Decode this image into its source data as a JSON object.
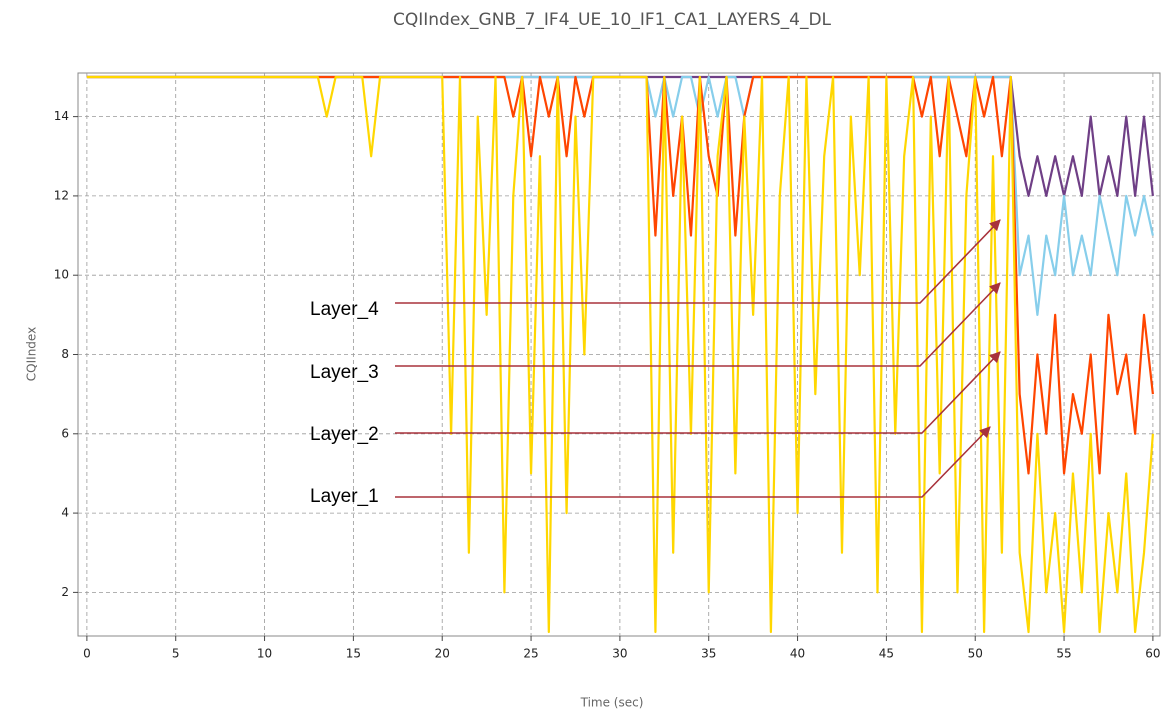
{
  "chart_data": {
    "type": "line",
    "title": "CQIIndex_GNB_7_IF4_UE_10_IF1_CA1_LAYERS_4_DL",
    "xlabel": "Time (sec)",
    "ylabel": "CQIIndex",
    "xlim": [
      -0.5,
      60.4
    ],
    "ylim": [
      0.9,
      15.1
    ],
    "xticks": [
      0,
      5,
      10,
      15,
      20,
      25,
      30,
      35,
      40,
      45,
      50,
      55,
      60
    ],
    "yticks": [
      2,
      4,
      6,
      8,
      10,
      12,
      14
    ],
    "grid": true,
    "x": [
      0,
      0.5,
      1,
      1.5,
      2,
      2.5,
      3,
      3.5,
      4,
      4.5,
      5,
      5.5,
      6,
      6.5,
      7,
      7.5,
      8,
      8.5,
      9,
      9.5,
      10,
      10.5,
      11,
      11.5,
      12,
      12.5,
      13,
      13.5,
      14,
      14.5,
      15,
      15.5,
      16,
      16.5,
      17,
      17.5,
      18,
      18.5,
      19,
      19.5,
      20,
      20.5,
      21,
      21.5,
      22,
      22.5,
      23,
      23.5,
      24,
      24.5,
      25,
      25.5,
      26,
      26.5,
      27,
      27.5,
      28,
      28.5,
      29,
      29.5,
      30,
      30.5,
      31,
      31.5,
      32,
      32.5,
      33,
      33.5,
      34,
      34.5,
      35,
      35.5,
      36,
      36.5,
      37,
      37.5,
      38,
      38.5,
      39,
      39.5,
      40,
      40.5,
      41,
      41.5,
      42,
      42.5,
      43,
      43.5,
      44,
      44.5,
      45,
      45.5,
      46,
      46.5,
      47,
      47.5,
      48,
      48.5,
      49,
      49.5,
      50,
      50.5,
      51,
      51.5,
      52,
      52.5,
      53,
      53.5,
      54,
      54.5,
      55,
      55.5,
      56,
      56.5,
      57,
      57.5,
      58,
      58.5,
      59,
      59.5,
      60
    ],
    "series": [
      {
        "name": "Layer_4",
        "color": "#6f3f86",
        "values": [
          15,
          15,
          15,
          15,
          15,
          15,
          15,
          15,
          15,
          15,
          15,
          15,
          15,
          15,
          15,
          15,
          15,
          15,
          15,
          15,
          15,
          15,
          15,
          15,
          15,
          15,
          15,
          15,
          15,
          15,
          15,
          15,
          15,
          15,
          15,
          15,
          15,
          15,
          15,
          15,
          15,
          15,
          15,
          15,
          15,
          15,
          15,
          15,
          15,
          15,
          15,
          15,
          15,
          15,
          15,
          15,
          15,
          15,
          15,
          15,
          15,
          15,
          15,
          15,
          15,
          15,
          15,
          15,
          15,
          15,
          15,
          15,
          15,
          15,
          15,
          15,
          15,
          15,
          15,
          15,
          15,
          15,
          15,
          15,
          15,
          15,
          15,
          15,
          15,
          15,
          15,
          15,
          15,
          15,
          15,
          15,
          15,
          15,
          15,
          15,
          15,
          15,
          15,
          15,
          15,
          13,
          12,
          13,
          12,
          13,
          12,
          13,
          12,
          14,
          12,
          13,
          12,
          14,
          12,
          14,
          12
        ]
      },
      {
        "name": "Layer_3",
        "color": "#87ceeb",
        "values": [
          15,
          15,
          15,
          15,
          15,
          15,
          15,
          15,
          15,
          15,
          15,
          15,
          15,
          15,
          15,
          15,
          15,
          15,
          15,
          15,
          15,
          15,
          15,
          15,
          15,
          15,
          15,
          15,
          15,
          15,
          15,
          15,
          15,
          15,
          15,
          15,
          15,
          15,
          15,
          15,
          15,
          15,
          15,
          15,
          15,
          15,
          15,
          15,
          15,
          15,
          15,
          15,
          15,
          15,
          15,
          15,
          15,
          15,
          15,
          15,
          15,
          15,
          15,
          15,
          14,
          15,
          14,
          15,
          15,
          14,
          15,
          14,
          15,
          15,
          14,
          15,
          15,
          15,
          15,
          15,
          15,
          15,
          15,
          15,
          15,
          15,
          15,
          15,
          15,
          15,
          15,
          15,
          15,
          15,
          15,
          15,
          15,
          15,
          15,
          15,
          15,
          15,
          15,
          15,
          15,
          10,
          11,
          9,
          11,
          10,
          12,
          10,
          11,
          10,
          12,
          11,
          10,
          12,
          11,
          12,
          11
        ]
      },
      {
        "name": "Layer_2",
        "color": "#ff4500",
        "values": [
          15,
          15,
          15,
          15,
          15,
          15,
          15,
          15,
          15,
          15,
          15,
          15,
          15,
          15,
          15,
          15,
          15,
          15,
          15,
          15,
          15,
          15,
          15,
          15,
          15,
          15,
          15,
          15,
          15,
          15,
          15,
          15,
          15,
          15,
          15,
          15,
          15,
          15,
          15,
          15,
          15,
          15,
          15,
          15,
          15,
          15,
          15,
          15,
          14,
          15,
          13,
          15,
          14,
          15,
          13,
          15,
          14,
          15,
          15,
          15,
          15,
          15,
          15,
          15,
          11,
          15,
          12,
          14,
          11,
          15,
          13,
          12,
          15,
          11,
          14,
          15,
          15,
          15,
          15,
          15,
          15,
          15,
          15,
          15,
          15,
          15,
          15,
          15,
          15,
          15,
          15,
          15,
          15,
          15,
          14,
          15,
          13,
          15,
          14,
          13,
          15,
          14,
          15,
          13,
          15,
          7,
          5,
          8,
          6,
          9,
          5,
          7,
          6,
          8,
          5,
          9,
          7,
          8,
          6,
          9,
          7
        ]
      },
      {
        "name": "Layer_1",
        "color": "#ffd700",
        "values": [
          15,
          15,
          15,
          15,
          15,
          15,
          15,
          15,
          15,
          15,
          15,
          15,
          15,
          15,
          15,
          15,
          15,
          15,
          15,
          15,
          15,
          15,
          15,
          15,
          15,
          15,
          15,
          14,
          15,
          15,
          15,
          15,
          13,
          15,
          15,
          15,
          15,
          15,
          15,
          15,
          15,
          6,
          15,
          3,
          14,
          9,
          15,
          2,
          12,
          15,
          5,
          13,
          1,
          15,
          4,
          14,
          8,
          15,
          15,
          15,
          15,
          15,
          15,
          15,
          1,
          15,
          3,
          14,
          6,
          15,
          2,
          13,
          15,
          5,
          14,
          9,
          15,
          1,
          12,
          15,
          4,
          15,
          7,
          13,
          15,
          3,
          14,
          10,
          15,
          2,
          15,
          6,
          13,
          15,
          1,
          14,
          5,
          15,
          2,
          12,
          15,
          1,
          13,
          3,
          15,
          3,
          1,
          6,
          2,
          4,
          1,
          5,
          2,
          6,
          1,
          4,
          2,
          5,
          1,
          3,
          6
        ]
      }
    ]
  }
}
